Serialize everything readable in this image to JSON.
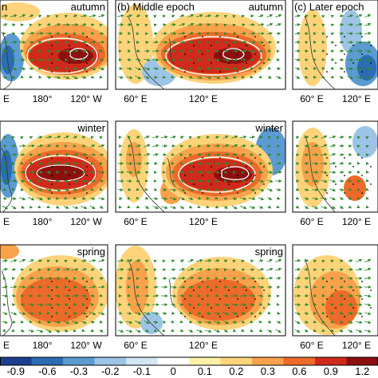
{
  "panels": {
    "col_titles": [
      "(b) Middle epoch",
      "(c) Later epoch"
    ],
    "partial_label_col0": "n",
    "seasons": [
      "autumn",
      "winter",
      "spring"
    ]
  },
  "axis_labels": {
    "col0": [
      "E",
      "180°",
      "120° W"
    ],
    "col1": [
      "60° E",
      "120° E"
    ],
    "col2": [
      "60° E",
      "120° E"
    ]
  },
  "colorbar": {
    "ticks": [
      "-0.9",
      "-0.6",
      "-0.3",
      "-0.2",
      "-0.1",
      "0",
      "0.1",
      "0.2",
      "0.3",
      "0.6",
      "0.9",
      "1.2"
    ],
    "colors": [
      "#1c3f8f",
      "#2b6cb3",
      "#5c9bd1",
      "#9dc4e6",
      "#d2e6f4",
      "#ffffff",
      "#fff2a8",
      "#fed37a",
      "#f9a24b",
      "#ec6a2a",
      "#cf2a1c",
      "#8e0f10"
    ]
  },
  "contour_color": "#ffffff",
  "vector_color": "#2c8a2c"
}
